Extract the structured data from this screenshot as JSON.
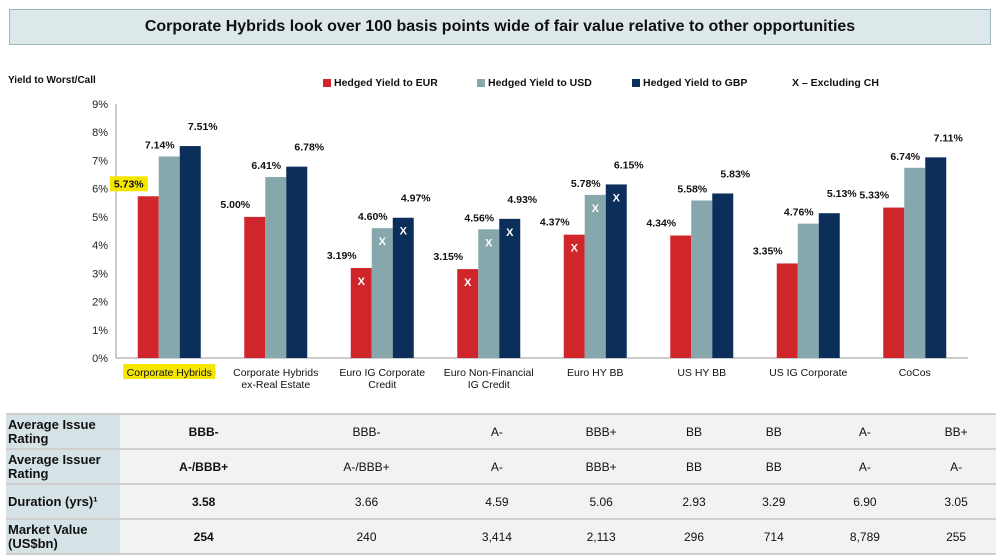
{
  "title": "Corporate Hybrids look over 100 basis points wide of fair value relative to other opportunities",
  "chart_data": {
    "type": "bar",
    "ylabel": "Yield to Worst/Call",
    "ylim": [
      0,
      9
    ],
    "yticks": [
      "0%",
      "1%",
      "2%",
      "3%",
      "4%",
      "5%",
      "6%",
      "7%",
      "8%",
      "9%"
    ],
    "categories": [
      "Corporate Hybrids",
      "Corporate Hybrids ex-Real Estate",
      "Euro IG Corporate Credit",
      "Euro Non-Financial IG Credit",
      "Euro HY BB",
      "US HY BB",
      "US IG Corporate",
      "CoCos"
    ],
    "highlighted_category": "Corporate Hybrids",
    "series": [
      {
        "name": "Hedged Yield to EUR",
        "color": "#d0262b",
        "values": [
          5.73,
          5.0,
          3.19,
          3.15,
          4.37,
          4.34,
          3.35,
          5.33
        ]
      },
      {
        "name": "Hedged Yield to USD",
        "color": "#86a7ab",
        "values": [
          7.14,
          6.41,
          4.6,
          4.56,
          5.78,
          5.58,
          4.76,
          6.74
        ]
      },
      {
        "name": "Hedged Yield to GBP",
        "color": "#0b2f5a",
        "values": [
          7.51,
          6.78,
          4.97,
          4.93,
          6.15,
          5.83,
          5.13,
          7.11
        ]
      }
    ],
    "data_labels": [
      [
        "5.73%",
        "5.00%",
        "3.19%",
        "3.15%",
        "4.37%",
        "4.34%",
        "3.35%",
        "5.33%"
      ],
      [
        "7.14%",
        "6.41%",
        "4.60%",
        "4.56%",
        "5.78%",
        "5.58%",
        "4.76%",
        "6.74%"
      ],
      [
        "7.51%",
        "6.78%",
        "4.97%",
        "4.93%",
        "6.15%",
        "5.83%",
        "5.13%",
        "7.11%"
      ]
    ],
    "x_marker": "X",
    "x_marker_legend": "X – Excluding  CH",
    "x_marked_categories": [
      false,
      false,
      true,
      true,
      true,
      false,
      false,
      false
    ],
    "legend_placement": "top",
    "grid": false
  },
  "table": {
    "rows": [
      {
        "label": "Average Issue Rating",
        "values": [
          "BBB-",
          "BBB-",
          "A-",
          "BBB+",
          "BB",
          "BB",
          "A-",
          "BB+"
        ]
      },
      {
        "label": "Average Issuer Rating",
        "values": [
          "A-/BBB+",
          "A-/BBB+",
          "A-",
          "BBB+",
          "BB",
          "BB",
          "A-",
          "A-"
        ]
      },
      {
        "label": "Duration (yrs)¹",
        "values": [
          "3.58",
          "3.66",
          "4.59",
          "5.06",
          "2.93",
          "3.29",
          "6.90",
          "3.05"
        ]
      },
      {
        "label": "Market Value (US$bn)",
        "values": [
          "254",
          "240",
          "3,414",
          "2,113",
          "296",
          "714",
          "8,789",
          "255"
        ]
      }
    ]
  }
}
